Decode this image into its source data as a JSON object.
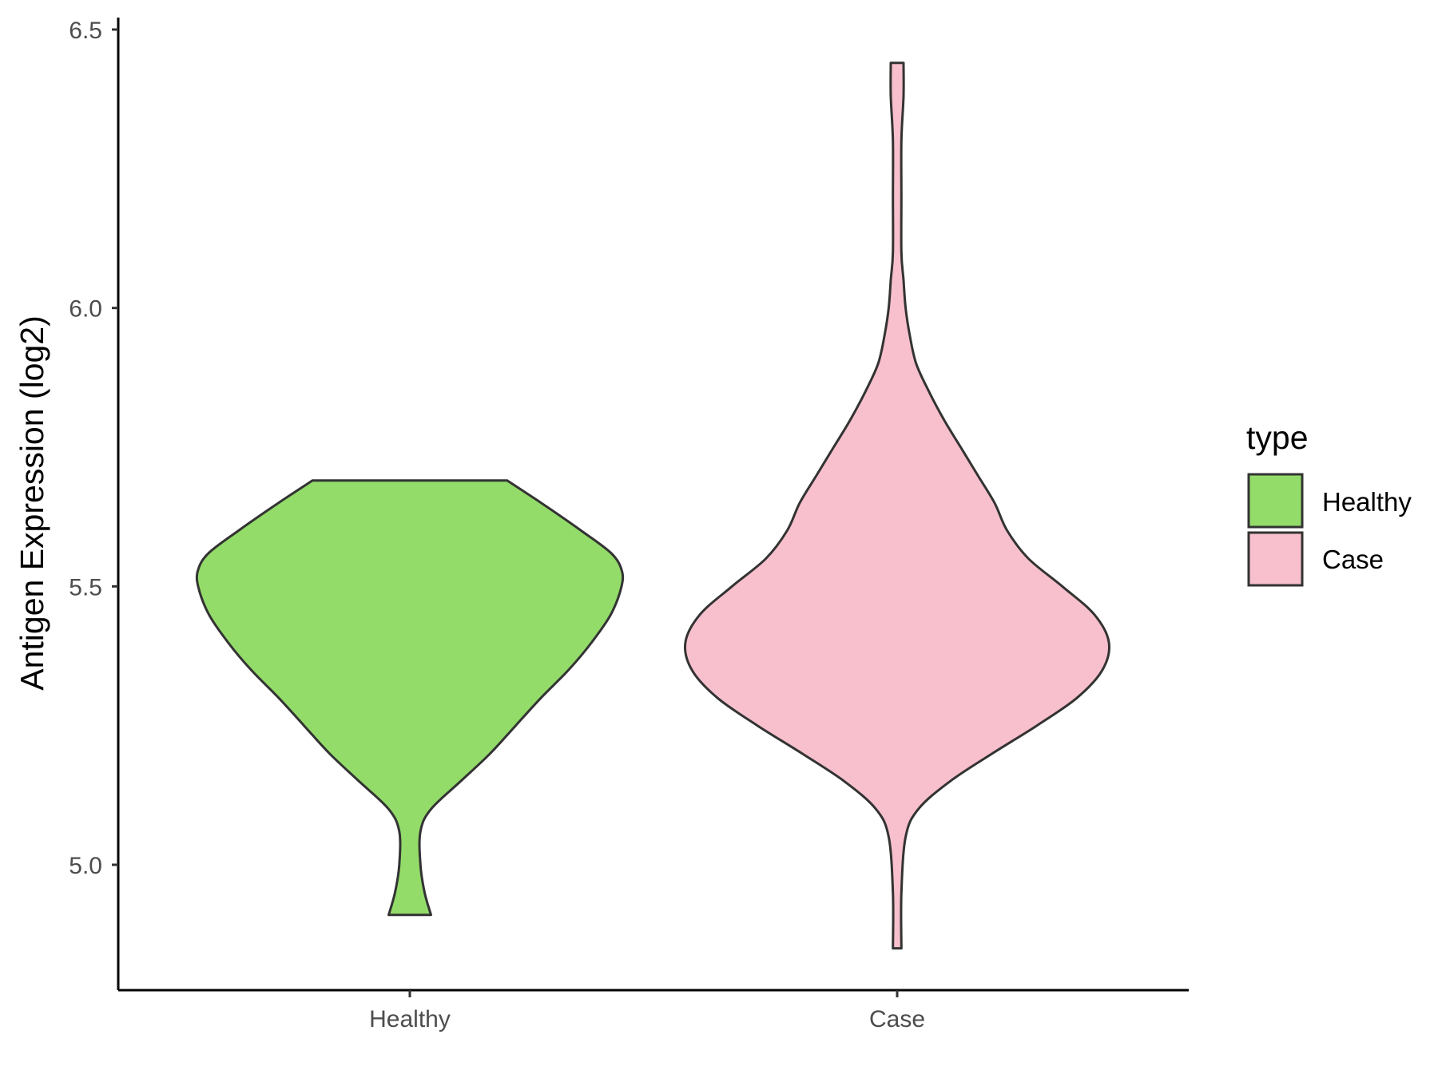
{
  "chart_data": {
    "type": "violin",
    "ylabel": "Antigen Expression (log2)",
    "xlabel": "",
    "categories": [
      "Healthy",
      "Case"
    ],
    "ylim": [
      4.77,
      6.52
    ],
    "y_ticks": [
      "5.0",
      "5.5",
      "6.0",
      "6.5"
    ],
    "grid": false,
    "legend": {
      "title": "type",
      "position": "right",
      "entries": [
        {
          "label": "Healthy",
          "color": "#93dc6a"
        },
        {
          "label": "Case",
          "color": "#f7c0cc"
        }
      ]
    },
    "series": [
      {
        "name": "Healthy",
        "color": "#93dc6a",
        "y_min": 4.91,
        "y_max": 5.69,
        "density_profile": [
          [
            4.91,
            0.1
          ],
          [
            4.95,
            0.07
          ],
          [
            5.0,
            0.05
          ],
          [
            5.06,
            0.05
          ],
          [
            5.1,
            0.1
          ],
          [
            5.15,
            0.24
          ],
          [
            5.2,
            0.38
          ],
          [
            5.25,
            0.5
          ],
          [
            5.3,
            0.62
          ],
          [
            5.35,
            0.75
          ],
          [
            5.4,
            0.86
          ],
          [
            5.45,
            0.95
          ],
          [
            5.5,
            1.0
          ],
          [
            5.53,
            1.0
          ],
          [
            5.56,
            0.95
          ],
          [
            5.6,
            0.81
          ],
          [
            5.65,
            0.62
          ],
          [
            5.69,
            0.46
          ]
        ]
      },
      {
        "name": "Case",
        "color": "#f7c0cc",
        "y_min": 4.85,
        "y_max": 6.44,
        "density_profile": [
          [
            4.85,
            0.02
          ],
          [
            4.95,
            0.02
          ],
          [
            5.05,
            0.04
          ],
          [
            5.1,
            0.1
          ],
          [
            5.15,
            0.25
          ],
          [
            5.2,
            0.45
          ],
          [
            5.25,
            0.66
          ],
          [
            5.3,
            0.85
          ],
          [
            5.35,
            0.97
          ],
          [
            5.4,
            1.0
          ],
          [
            5.45,
            0.93
          ],
          [
            5.5,
            0.78
          ],
          [
            5.55,
            0.62
          ],
          [
            5.6,
            0.52
          ],
          [
            5.65,
            0.46
          ],
          [
            5.7,
            0.38
          ],
          [
            5.75,
            0.3
          ],
          [
            5.8,
            0.22
          ],
          [
            5.85,
            0.15
          ],
          [
            5.9,
            0.09
          ],
          [
            5.95,
            0.06
          ],
          [
            6.0,
            0.04
          ],
          [
            6.05,
            0.03
          ],
          [
            6.1,
            0.02
          ],
          [
            6.2,
            0.02
          ],
          [
            6.3,
            0.02
          ],
          [
            6.38,
            0.03
          ],
          [
            6.44,
            0.03
          ]
        ]
      }
    ]
  }
}
